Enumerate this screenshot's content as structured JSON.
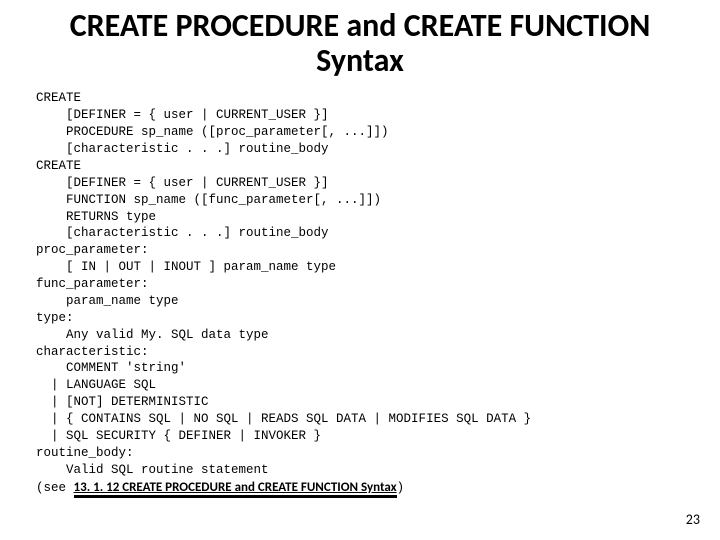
{
  "title": "CREATE PROCEDURE and CREATE FUNCTION Syntax",
  "code": "CREATE\n    [DEFINER = { user | CURRENT_USER }]\n    PROCEDURE sp_name ([proc_parameter[, ...]])\n    [characteristic . . .] routine_body\nCREATE\n    [DEFINER = { user | CURRENT_USER }]\n    FUNCTION sp_name ([func_parameter[, ...]])\n    RETURNS type\n    [characteristic . . .] routine_body\nproc_parameter:\n    [ IN | OUT | INOUT ] param_name type\nfunc_parameter:\n    param_name type\ntype:\n    Any valid My. SQL data type\ncharacteristic:\n    COMMENT 'string'\n  | LANGUAGE SQL\n  | [NOT] DETERMINISTIC\n  | { CONTAINS SQL | NO SQL | READS SQL DATA | MODIFIES SQL DATA }\n  | SQL SECURITY { DEFINER | INVOKER }\nroutine_body:\n    Valid SQL routine statement",
  "see_prefix": "(see ",
  "link_text": "13. 1. 12 CREATE PROCEDURE and CREATE FUNCTION Syntax",
  "see_suffix": ")",
  "page_number": "23"
}
